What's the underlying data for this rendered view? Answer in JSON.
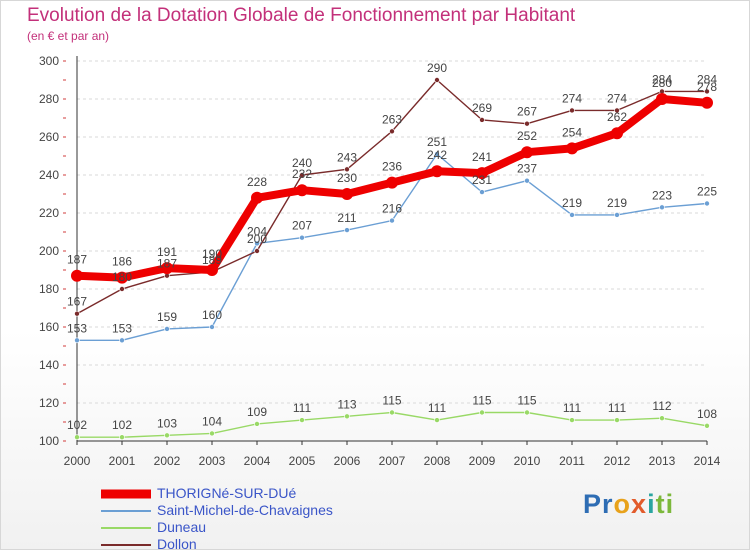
{
  "chart_data": {
    "type": "line",
    "title": "Evolution de la Dotation Globale de Fonctionnement par Habitant",
    "subtitle": "(en € et par an)",
    "xlabel": "",
    "ylabel": "",
    "x": [
      "2000",
      "2001",
      "2002",
      "2003",
      "2004",
      "2005",
      "2006",
      "2007",
      "2008",
      "2009",
      "2010",
      "2011",
      "2012",
      "2013",
      "2014"
    ],
    "ylim": [
      100,
      300
    ],
    "yticks": [
      100,
      120,
      140,
      160,
      180,
      200,
      220,
      240,
      260,
      280,
      300
    ],
    "grid": "horizontal dashed",
    "legend_position": "bottom-left",
    "series": [
      {
        "name": "THORIGNé-SUR-DUé",
        "color": "#ee0000",
        "line_width": 8,
        "marker": 12,
        "values": [
          187,
          186,
          191,
          190,
          228,
          232,
          230,
          236,
          242,
          241,
          252,
          254,
          262,
          280,
          278
        ]
      },
      {
        "name": "Saint-Michel-de-Chavaignes",
        "color": "#6b9fd4",
        "line_width": 1.4,
        "marker": 5,
        "values": [
          153,
          153,
          159,
          160,
          204,
          207,
          211,
          216,
          251,
          231,
          237,
          219,
          219,
          223,
          225
        ]
      },
      {
        "name": "Duneau",
        "color": "#99d966",
        "line_width": 1.4,
        "marker": 5,
        "values": [
          102,
          102,
          103,
          104,
          109,
          111,
          113,
          115,
          111,
          115,
          115,
          111,
          111,
          112,
          108
        ]
      },
      {
        "name": "Dollon",
        "color": "#7a2b2b",
        "line_width": 1.4,
        "marker": 5,
        "values": [
          167,
          180,
          187,
          189,
          200,
          240,
          243,
          263,
          290,
          269,
          267,
          274,
          274,
          284,
          284
        ]
      }
    ]
  },
  "logo": {
    "letters": [
      "P",
      "r",
      "o",
      "x",
      "i",
      "t",
      "i"
    ]
  }
}
